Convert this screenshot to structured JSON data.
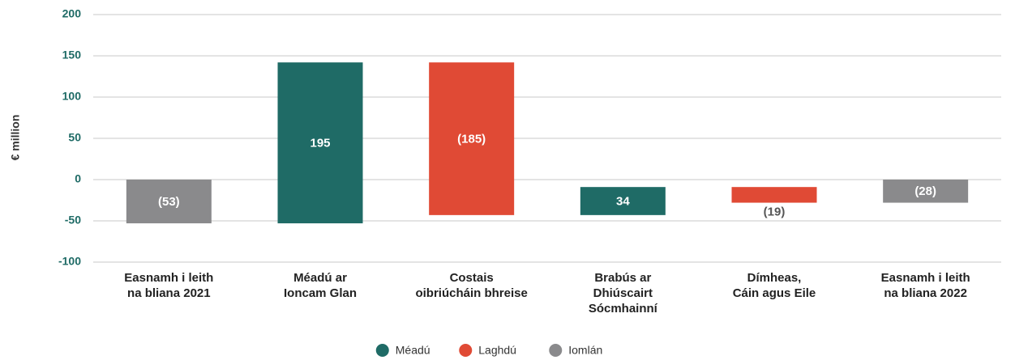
{
  "chart_data": {
    "type": "waterfall",
    "y_label": "€ million",
    "categories": [
      [
        "Easnamh i leith",
        "na bliana 2021"
      ],
      [
        "Méadú ar",
        "Ioncam Glan"
      ],
      [
        "Costais",
        "oibriúcháin bhreise"
      ],
      [
        "Brabús ar",
        "Dhiúscairt",
        "Sócmhainní"
      ],
      [
        "Dímheas,",
        "Cáin agus Eile"
      ],
      [
        "Easnamh i leith",
        "na bliana 2022"
      ]
    ],
    "series": [
      {
        "name": "Méadú",
        "color": "#1f6b66",
        "values": [
          null,
          195,
          null,
          34,
          null,
          null
        ],
        "value_labels": [
          null,
          "195",
          null,
          "34",
          null,
          null
        ]
      },
      {
        "name": "Laghdú",
        "color": "#e04a35",
        "values": [
          null,
          null,
          -185,
          null,
          -19,
          null
        ],
        "value_labels": [
          null,
          null,
          "(185)",
          null,
          "(19)",
          null
        ]
      },
      {
        "name": "Iomlán",
        "color": "#8a8a8c",
        "values": [
          -53,
          null,
          null,
          null,
          null,
          -28
        ],
        "value_labels": [
          "(53)",
          null,
          null,
          null,
          null,
          "(28)"
        ],
        "total": true
      }
    ],
    "ylim": [
      -100,
      200
    ],
    "yticks": [
      -100,
      -50,
      0,
      50,
      100,
      150,
      200
    ],
    "grid": true
  }
}
